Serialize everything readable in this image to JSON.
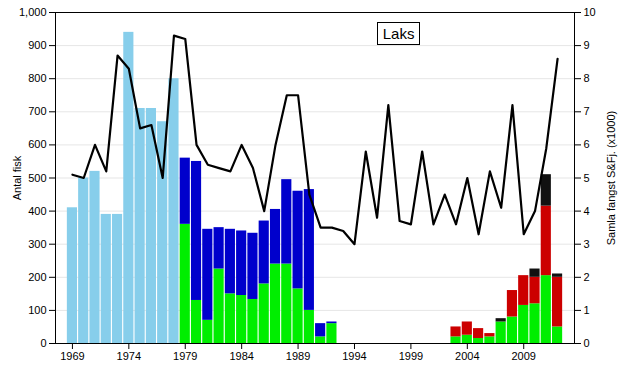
{
  "chart_data": {
    "type": "bar",
    "title": "Laks",
    "ylabel": "Antal fisk",
    "y2label": "Samla fangst S&Fj. (x1000)",
    "stacked": true,
    "grid": true,
    "x": [
      1969,
      1970,
      1971,
      1972,
      1973,
      1974,
      1975,
      1976,
      1977,
      1978,
      1979,
      1980,
      1981,
      1982,
      1983,
      1984,
      1985,
      1986,
      1987,
      1988,
      1989,
      1990,
      1991,
      1992,
      1993,
      2003,
      2004,
      2005,
      2006,
      2007,
      2008,
      2009,
      2010,
      2011,
      2012
    ],
    "series": [
      {
        "color": "#87CEEB",
        "values": [
          410,
          500,
          520,
          390,
          390,
          940,
          710,
          710,
          670,
          800,
          0,
          0,
          0,
          0,
          0,
          0,
          0,
          0,
          0,
          0,
          0,
          0,
          0,
          0,
          0,
          0,
          0,
          0,
          0,
          0,
          0,
          0,
          0,
          0,
          0
        ]
      },
      {
        "color": "#00EE00",
        "values": [
          0,
          0,
          0,
          0,
          0,
          0,
          0,
          0,
          0,
          0,
          360,
          130,
          70,
          225,
          150,
          145,
          133,
          180,
          240,
          240,
          165,
          100,
          20,
          60,
          0,
          20,
          25,
          15,
          20,
          65,
          80,
          115,
          120,
          205,
          50
        ]
      },
      {
        "color": "#0000CC",
        "values": [
          0,
          0,
          0,
          0,
          0,
          0,
          0,
          0,
          0,
          0,
          200,
          420,
          275,
          125,
          195,
          195,
          200,
          190,
          165,
          255,
          295,
          365,
          40,
          5,
          0,
          0,
          0,
          0,
          0,
          0,
          0,
          0,
          0,
          0,
          0
        ]
      },
      {
        "color": "#CC0000",
        "values": [
          0,
          0,
          0,
          0,
          0,
          0,
          0,
          0,
          0,
          0,
          0,
          0,
          0,
          0,
          0,
          0,
          0,
          0,
          0,
          0,
          0,
          0,
          0,
          0,
          0,
          30,
          40,
          30,
          10,
          0,
          80,
          90,
          80,
          210,
          150
        ]
      },
      {
        "color": "#111111",
        "values": [
          0,
          0,
          0,
          0,
          0,
          0,
          0,
          0,
          0,
          0,
          0,
          0,
          0,
          0,
          0,
          0,
          0,
          0,
          0,
          0,
          0,
          0,
          0,
          0,
          0,
          0,
          0,
          0,
          0,
          10,
          0,
          0,
          25,
          95,
          10
        ]
      },
      {
        "type": "line",
        "axis": "y2",
        "color": "#000000",
        "x": [
          1969,
          1970,
          1971,
          1972,
          1973,
          1974,
          1975,
          1976,
          1977,
          1978,
          1979,
          1980,
          1981,
          1982,
          1983,
          1984,
          1985,
          1986,
          1987,
          1988,
          1989,
          1990,
          1991,
          1992,
          1993,
          1994,
          1995,
          1996,
          1997,
          1998,
          1999,
          2000,
          2001,
          2002,
          2003,
          2004,
          2005,
          2006,
          2007,
          2008,
          2009,
          2010,
          2011,
          2012
        ],
        "values": [
          5.1,
          5.0,
          6.0,
          5.2,
          8.7,
          8.3,
          6.5,
          6.6,
          5.0,
          9.3,
          9.2,
          6.0,
          5.4,
          5.3,
          5.2,
          6.0,
          5.3,
          4.0,
          6.0,
          7.5,
          7.5,
          4.5,
          3.5,
          3.5,
          3.4,
          3.0,
          5.8,
          3.8,
          7.2,
          3.7,
          3.6,
          5.8,
          3.6,
          4.5,
          3.6,
          5.0,
          3.3,
          5.2,
          4.1,
          7.2,
          3.3,
          4.0,
          5.9,
          8.6
        ]
      }
    ],
    "xlim": [
      1967.5,
      2013.5
    ],
    "xticks": [
      1969,
      1974,
      1979,
      1984,
      1989,
      1994,
      1999,
      2004,
      2009
    ],
    "ylim": [
      0,
      1000
    ],
    "yticks": [
      0,
      100,
      200,
      300,
      400,
      500,
      600,
      700,
      800,
      900,
      1000
    ],
    "y2lim": [
      0,
      10
    ],
    "y2ticks": [
      0,
      1,
      2,
      3,
      4,
      5,
      6,
      7,
      8,
      9,
      10
    ]
  }
}
